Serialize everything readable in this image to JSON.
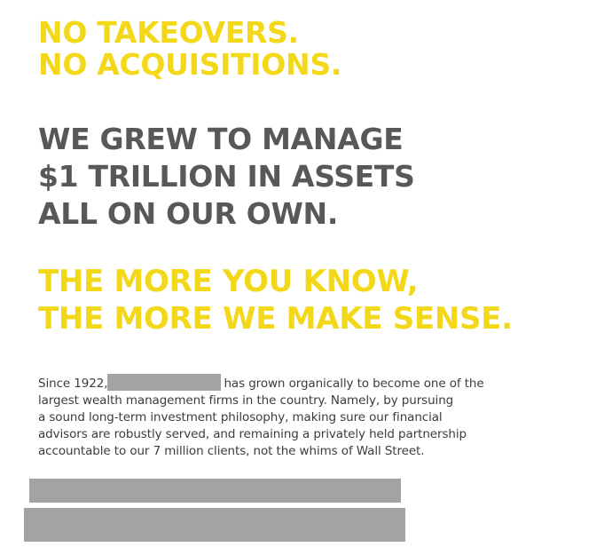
{
  "headline_1": {
    "line_1": "NO TAKEOVERS.",
    "line_2": "NO ACQUISITIONS."
  },
  "headline_2": {
    "line_1": "WE GREW TO MANAGE",
    "line_2": "$1 TRILLION IN ASSETS",
    "line_3": "ALL ON OUR OWN."
  },
  "headline_3": {
    "line_1": "THE MORE YOU KNOW,",
    "line_2": "THE MORE WE MAKE SENSE."
  },
  "body": {
    "lead": "Since 1922,",
    "line_1_rest": "has grown organically to become one of the",
    "line_2": "largest wealth management firms in the country. Namely, by pursuing",
    "line_3": "a sound long-term investment philosophy, making sure our financial",
    "line_4": "advisors are robustly served, and remaining a privately held partnership",
    "line_5": "accountable to our 7 million clients, not the whims of Wall Street."
  },
  "colors": {
    "accent_yellow": "#f3d81a",
    "headline_gray": "#58585a",
    "redaction_gray": "#a3a3a3",
    "body_text": "#3c3c3c"
  }
}
